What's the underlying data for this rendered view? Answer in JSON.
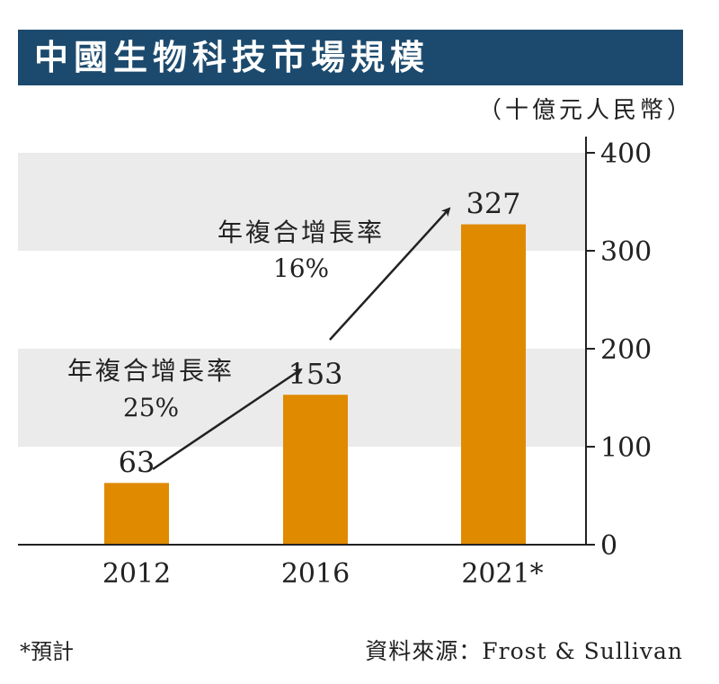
{
  "header": {
    "title": "中國生物科技市場規模"
  },
  "unit": "（十億元人民幣）",
  "footnote": "*預計",
  "source": "資料來源：Frost & Sullivan",
  "colors": {
    "bar": "#e08a00",
    "band": "#ebebeb",
    "title_bg": "#1c4a6e",
    "axis": "#222222"
  },
  "chart_data": {
    "type": "bar",
    "title": "中國生物科技市場規模",
    "categories": [
      "2012",
      "2016",
      "2021*"
    ],
    "values": [
      63,
      153,
      327
    ],
    "ylim": [
      0,
      400
    ],
    "yticks": [
      0,
      100,
      200,
      300,
      400
    ],
    "ylabel": "（十億元人民幣）",
    "xlabel": "",
    "grid": "alternating horizontal bands",
    "annotations": [
      {
        "line1": "年複合增長率",
        "line2": "25%",
        "from": "2012",
        "to": "2016"
      },
      {
        "line1": "年複合增長率",
        "line2": "16%",
        "from": "2016",
        "to": "2021*"
      }
    ]
  }
}
